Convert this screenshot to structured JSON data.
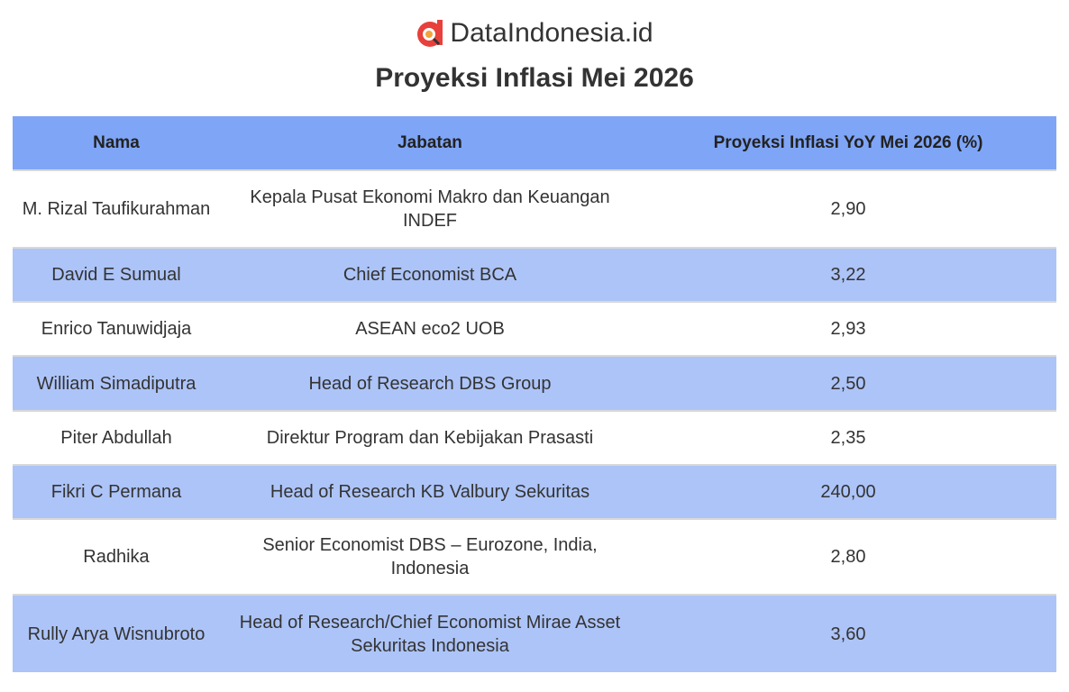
{
  "header": {
    "logo": "DataIndonesia.id",
    "title": "Proyeksi Inflasi Mei 2026"
  },
  "table": {
    "columns": [
      "Nama",
      "Jabatan",
      "Proyeksi Inflasi YoY Mei 2026 (%)"
    ],
    "rows": [
      [
        "M. Rizal Taufikurahman",
        "Kepala Pusat Ekonomi Makro dan Keuangan INDEF",
        "2,90"
      ],
      [
        "David E Sumual",
        "Chief Economist BCA",
        "3,22"
      ],
      [
        "Enrico Tanuwidjaja",
        "ASEAN eco2 UOB",
        "2,93"
      ],
      [
        "William Simadiputra",
        "Head of Research DBS Group",
        "2,50"
      ],
      [
        "Piter Abdullah",
        "Direktur Program dan Kebijakan Prasasti",
        "2,35"
      ],
      [
        "Fikri C Permana",
        "Head of Research KB Valbury Sekuritas",
        "240,00"
      ],
      [
        "Radhika",
        "Senior Economist DBS – Eurozone, India, Indonesia",
        "2,80"
      ],
      [
        "Rully Arya Wisnubroto",
        "Head of Research/Chief Economist Mirae Asset Sekuritas Indonesia",
        "3,60"
      ]
    ]
  }
}
